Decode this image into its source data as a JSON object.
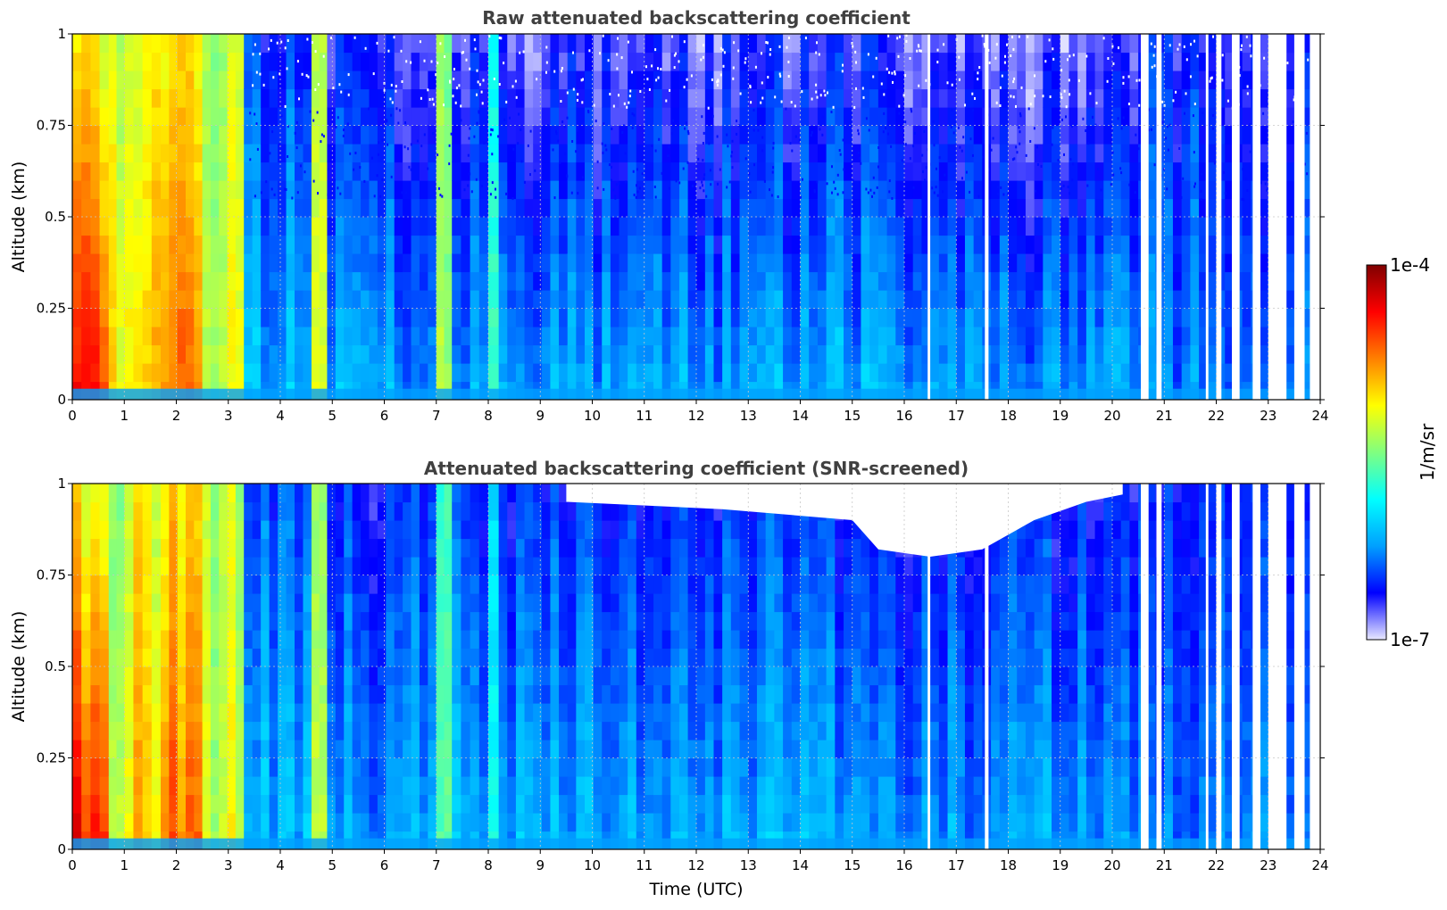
{
  "chart_data": [
    {
      "type": "heatmap",
      "title": "Raw attenuated backscattering coefficient",
      "xlabel": "",
      "ylabel": "Altitude (km)",
      "xlim": [
        0,
        24
      ],
      "ylim": [
        0,
        1
      ],
      "x_ticks": [
        "0",
        "1",
        "2",
        "3",
        "4",
        "5",
        "6",
        "7",
        "8",
        "9",
        "10",
        "11",
        "12",
        "13",
        "14",
        "15",
        "16",
        "17",
        "18",
        "19",
        "20",
        "21",
        "22",
        "23",
        "24"
      ],
      "y_ticks": [
        "0",
        "0.25",
        "0.5",
        "0.75",
        "1"
      ],
      "grid": true,
      "snr_screened": false,
      "bands": [
        {
          "t0": 0.0,
          "t1": 0.7,
          "level_low": 0.86,
          "level_high": 0.62
        },
        {
          "t0": 0.7,
          "t1": 1.0,
          "level_low": 0.62,
          "level_high": 0.55
        },
        {
          "t0": 1.0,
          "t1": 1.7,
          "level_low": 0.68,
          "level_high": 0.62
        },
        {
          "t0": 1.7,
          "t1": 2.5,
          "level_low": 0.78,
          "level_high": 0.66
        },
        {
          "t0": 2.5,
          "t1": 3.3,
          "level_low": 0.58,
          "level_high": 0.55
        },
        {
          "t0": 3.3,
          "t1": 4.6,
          "level_low": 0.28,
          "level_high": 0.16
        },
        {
          "t0": 4.6,
          "t1": 4.9,
          "level_low": 0.55,
          "level_high": 0.5
        },
        {
          "t0": 4.9,
          "t1": 7.0,
          "level_low": 0.26,
          "level_high": 0.1
        },
        {
          "t0": 7.0,
          "t1": 7.3,
          "level_low": 0.52,
          "level_high": 0.48
        },
        {
          "t0": 7.3,
          "t1": 8.0,
          "level_low": 0.27,
          "level_high": 0.12
        },
        {
          "t0": 8.0,
          "t1": 8.2,
          "level_low": 0.42,
          "level_high": 0.36
        },
        {
          "t0": 8.2,
          "t1": 12.5,
          "level_low": 0.26,
          "level_high": 0.08
        },
        {
          "t0": 12.5,
          "t1": 15.5,
          "level_low": 0.27,
          "level_high": 0.1
        },
        {
          "t0": 15.5,
          "t1": 20.5,
          "level_low": 0.25,
          "level_high": 0.06
        },
        {
          "t0": 20.5,
          "t1": 24.0,
          "level_low": 0.24,
          "level_high": 0.14
        }
      ],
      "gaps": [
        [
          16.45,
          16.5
        ],
        [
          17.55,
          17.62
        ],
        [
          20.55,
          20.7
        ],
        [
          20.85,
          20.95
        ],
        [
          21.8,
          21.85
        ],
        [
          22.0,
          22.1
        ],
        [
          22.3,
          22.45
        ],
        [
          22.7,
          22.85
        ],
        [
          23.0,
          23.35
        ],
        [
          23.5,
          23.7
        ],
        [
          23.8,
          24.0
        ]
      ]
    },
    {
      "type": "heatmap",
      "title": "Attenuated backscattering coefficient (SNR-screened)",
      "xlabel": "Time (UTC)",
      "ylabel": "Altitude (km)",
      "xlim": [
        0,
        24
      ],
      "ylim": [
        0,
        1
      ],
      "x_ticks": [
        "0",
        "1",
        "2",
        "3",
        "4",
        "5",
        "6",
        "7",
        "8",
        "9",
        "10",
        "11",
        "12",
        "13",
        "14",
        "15",
        "16",
        "17",
        "18",
        "19",
        "20",
        "21",
        "22",
        "23",
        "24"
      ],
      "y_ticks": [
        "0",
        "0.25",
        "0.5",
        "0.75",
        "1"
      ],
      "grid": true,
      "snr_screened": true,
      "screened_region": [
        [
          9.5,
          0.95
        ],
        [
          12.5,
          0.93
        ],
        [
          15.0,
          0.9
        ],
        [
          15.5,
          0.82
        ],
        [
          16.5,
          0.8
        ],
        [
          17.5,
          0.82
        ],
        [
          18.5,
          0.9
        ],
        [
          19.5,
          0.95
        ],
        [
          20.2,
          0.97
        ]
      ],
      "bands": [
        {
          "t0": 0.0,
          "t1": 0.7,
          "level_low": 0.86,
          "level_high": 0.62
        },
        {
          "t0": 0.7,
          "t1": 1.0,
          "level_low": 0.62,
          "level_high": 0.55
        },
        {
          "t0": 1.0,
          "t1": 1.7,
          "level_low": 0.68,
          "level_high": 0.62
        },
        {
          "t0": 1.7,
          "t1": 2.5,
          "level_low": 0.78,
          "level_high": 0.66
        },
        {
          "t0": 2.5,
          "t1": 3.3,
          "level_low": 0.58,
          "level_high": 0.55
        },
        {
          "t0": 3.3,
          "t1": 4.6,
          "level_low": 0.28,
          "level_high": 0.18
        },
        {
          "t0": 4.6,
          "t1": 4.9,
          "level_low": 0.55,
          "level_high": 0.5
        },
        {
          "t0": 4.9,
          "t1": 7.0,
          "level_low": 0.26,
          "level_high": 0.14
        },
        {
          "t0": 7.0,
          "t1": 7.3,
          "level_low": 0.52,
          "level_high": 0.48
        },
        {
          "t0": 7.3,
          "t1": 8.0,
          "level_low": 0.27,
          "level_high": 0.15
        },
        {
          "t0": 8.0,
          "t1": 8.2,
          "level_low": 0.42,
          "level_high": 0.36
        },
        {
          "t0": 8.2,
          "t1": 12.5,
          "level_low": 0.26,
          "level_high": 0.14
        },
        {
          "t0": 12.5,
          "t1": 15.5,
          "level_low": 0.27,
          "level_high": 0.15
        },
        {
          "t0": 15.5,
          "t1": 20.5,
          "level_low": 0.25,
          "level_high": 0.13
        },
        {
          "t0": 20.5,
          "t1": 24.0,
          "level_low": 0.24,
          "level_high": 0.16
        }
      ],
      "gaps": [
        [
          16.45,
          16.5
        ],
        [
          17.55,
          17.62
        ],
        [
          20.55,
          20.7
        ],
        [
          20.85,
          20.95
        ],
        [
          21.8,
          21.85
        ],
        [
          22.0,
          22.1
        ],
        [
          22.3,
          22.45
        ],
        [
          22.7,
          22.85
        ],
        [
          23.0,
          23.35
        ],
        [
          23.5,
          23.7
        ],
        [
          23.8,
          24.0
        ]
      ]
    }
  ],
  "colorbar": {
    "max_label": "1e-4",
    "min_label": "1e-7",
    "label": "1/m/sr",
    "colors": [
      "#e8e8ff",
      "#0000ff",
      "#00a0ff",
      "#00ffff",
      "#80ff80",
      "#ffff00",
      "#ff8000",
      "#ff0000",
      "#800000"
    ]
  }
}
